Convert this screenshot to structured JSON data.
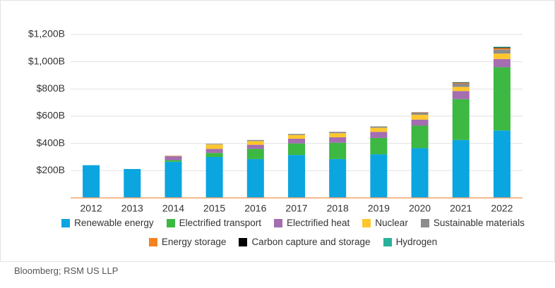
{
  "chart_data": {
    "type": "stacked_bar",
    "categories": [
      "2012",
      "2013",
      "2014",
      "2015",
      "2016",
      "2017",
      "2018",
      "2019",
      "2020",
      "2021",
      "2022"
    ],
    "series": [
      {
        "name": "Renewable energy",
        "color": "#0ba5e0",
        "values": [
          240,
          212,
          265,
          300,
          285,
          315,
          285,
          320,
          365,
          425,
          495
        ]
      },
      {
        "name": "Electrified transport",
        "color": "#3cb843",
        "values": [
          0,
          0,
          12,
          30,
          75,
          85,
          120,
          120,
          165,
          300,
          465
        ]
      },
      {
        "name": "Electrified heat",
        "color": "#a46eb0",
        "values": [
          0,
          0,
          30,
          30,
          30,
          35,
          40,
          45,
          45,
          60,
          60
        ]
      },
      {
        "name": "Nuclear",
        "color": "#ffc72c",
        "values": [
          0,
          0,
          3,
          32,
          27,
          27,
          30,
          30,
          35,
          30,
          40
        ]
      },
      {
        "name": "Sustainable materials",
        "color": "#8c8c8c",
        "values": [
          0,
          0,
          1,
          5,
          8,
          8,
          10,
          10,
          18,
          25,
          30
        ]
      },
      {
        "name": "Energy storage",
        "color": "#f58220",
        "values": [
          0,
          0,
          0,
          0,
          0,
          0,
          0,
          0,
          2,
          5,
          10
        ]
      },
      {
        "name": "Carbon capture and storage",
        "color": "#000000",
        "values": [
          0,
          0,
          0,
          0,
          0,
          0,
          0,
          0,
          0,
          3,
          5
        ]
      },
      {
        "name": "Hydrogen",
        "color": "#2ab19b",
        "values": [
          0,
          0,
          0,
          0,
          0,
          0,
          0,
          0,
          0,
          2,
          5
        ]
      }
    ],
    "ylim": [
      0,
      1200
    ],
    "yticks": [
      {
        "value": 200,
        "label": "$200B"
      },
      {
        "value": 400,
        "label": "$400B"
      },
      {
        "value": 600,
        "label": "$600B"
      },
      {
        "value": 800,
        "label": "$800B"
      },
      {
        "value": 1000,
        "label": "$1,000B"
      },
      {
        "value": 1200,
        "label": "$1,200B"
      }
    ],
    "grid": true,
    "source": "Bloomberg; RSM US LLP"
  }
}
